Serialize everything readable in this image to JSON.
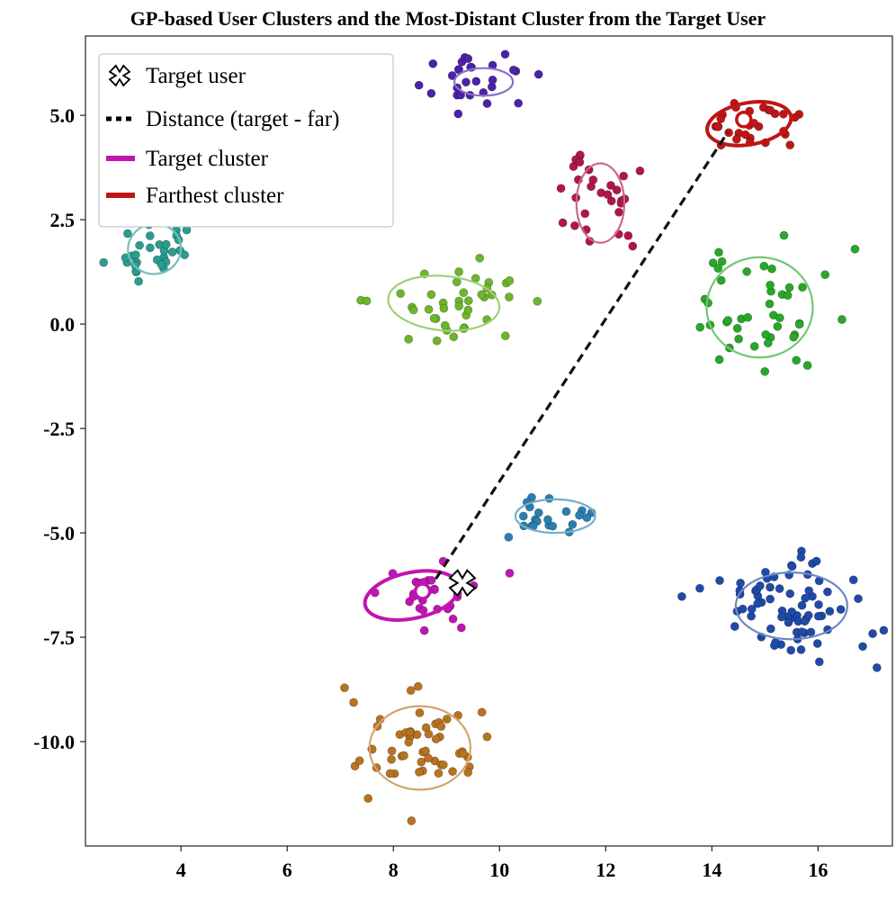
{
  "chart_data": {
    "type": "scatter",
    "title": "GP-based User Clusters and the Most-Distant Cluster from the Target User",
    "xlabel": "",
    "ylabel": "",
    "xlim": [
      2.2,
      17.4
    ],
    "ylim": [
      -12.5,
      6.9
    ],
    "xticks": [
      4,
      6,
      8,
      10,
      12,
      14,
      16
    ],
    "yticks": [
      5.0,
      2.5,
      0.0,
      -2.5,
      -5.0,
      -7.5,
      -10.0
    ],
    "xtick_labels": [
      "4",
      "6",
      "8",
      "10",
      "12",
      "14",
      "16"
    ],
    "ytick_labels": [
      "5.0",
      "2.5",
      "0.0",
      "-2.5",
      "-5.0",
      "-7.5",
      "-10.0"
    ],
    "grid": false,
    "legend_position": "top-left",
    "legend": [
      {
        "label": "Target user",
        "marker": "x-cross",
        "color": "#000000"
      },
      {
        "label": "Distance (target - far)",
        "marker": "dashed-line",
        "color": "#000000"
      },
      {
        "label": "Target cluster",
        "marker": "line",
        "color": "#c015b0"
      },
      {
        "label": "Farthest cluster",
        "marker": "line",
        "color": "#c01515"
      }
    ],
    "target_user": {
      "x": 9.3,
      "y": -6.2
    },
    "distance_line": {
      "from": [
        8.8,
        -6.1
      ],
      "to": [
        14.3,
        4.6
      ]
    },
    "clusters": [
      {
        "name": "",
        "color": "#2a9d8f",
        "ellipse": {
          "cx": 3.5,
          "cy": 1.8,
          "rx": 0.5,
          "ry": 0.6,
          "angle": 10
        },
        "center": null,
        "count": 30,
        "spread": [
          0.38,
          0.45
        ],
        "seed": 11
      },
      {
        "name": "",
        "color": "#4b22a8",
        "ellipse": {
          "cx": 9.7,
          "cy": 5.8,
          "rx": 0.55,
          "ry": 0.33,
          "angle": 0
        },
        "center": null,
        "count": 28,
        "spread": [
          0.45,
          0.3
        ],
        "seed": 23
      },
      {
        "name": "",
        "color": "#b0154e",
        "ellipse": {
          "cx": 11.9,
          "cy": 2.9,
          "rx": 0.45,
          "ry": 0.95,
          "angle": 0
        },
        "center": null,
        "count": 30,
        "spread": [
          0.35,
          0.6
        ],
        "seed": 37
      },
      {
        "name": "",
        "color": "#c01515",
        "ellipse": {
          "cx": 14.7,
          "cy": 4.8,
          "rx": 0.8,
          "ry": 0.5,
          "angle": 10
        },
        "center": {
          "x": 14.6,
          "y": 4.9
        },
        "count": 30,
        "spread": [
          0.5,
          0.35
        ],
        "seed": 51,
        "highlight": "farthest"
      },
      {
        "name": "",
        "color": "#6db52a",
        "ellipse": {
          "cx": 8.95,
          "cy": 0.5,
          "rx": 1.05,
          "ry": 0.65,
          "angle": -5
        },
        "center": null,
        "count": 40,
        "spread": [
          0.75,
          0.5
        ],
        "seed": 63
      },
      {
        "name": "",
        "color": "#28a728",
        "ellipse": {
          "cx": 14.9,
          "cy": 0.4,
          "rx": 1.0,
          "ry": 1.2,
          "angle": 0
        },
        "center": null,
        "count": 45,
        "spread": [
          0.75,
          0.85
        ],
        "seed": 77
      },
      {
        "name": "",
        "color": "#2b7fb0",
        "ellipse": {
          "cx": 11.05,
          "cy": -4.6,
          "rx": 0.75,
          "ry": 0.4,
          "angle": 0
        },
        "center": null,
        "count": 22,
        "spread": [
          0.5,
          0.3
        ],
        "seed": 89
      },
      {
        "name": "",
        "color": "#c015b0",
        "ellipse": {
          "cx": 8.35,
          "cy": -6.5,
          "rx": 0.9,
          "ry": 0.55,
          "angle": 12
        },
        "center": {
          "x": 8.55,
          "y": -6.4
        },
        "count": 30,
        "spread": [
          0.6,
          0.4
        ],
        "seed": 97,
        "highlight": "target"
      },
      {
        "name": "",
        "color": "#1f4aa8",
        "ellipse": {
          "cx": 15.5,
          "cy": -6.75,
          "rx": 1.05,
          "ry": 0.8,
          "angle": 0
        },
        "center": null,
        "count": 75,
        "spread": [
          0.7,
          0.65
        ],
        "seed": 109
      },
      {
        "name": "",
        "color": "#b87320",
        "ellipse": {
          "cx": 8.5,
          "cy": -10.15,
          "rx": 0.95,
          "ry": 1.0,
          "angle": 0
        },
        "center": null,
        "count": 55,
        "spread": [
          0.6,
          0.65
        ],
        "seed": 127
      }
    ]
  }
}
